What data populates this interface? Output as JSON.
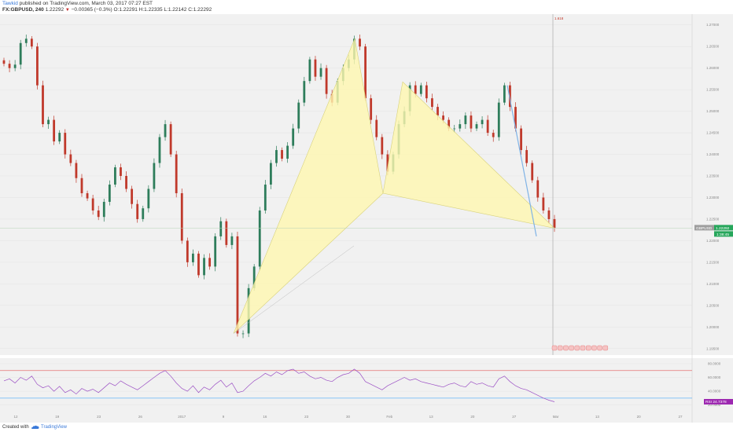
{
  "header": {
    "author": "Tawkid",
    "published_text": " published on TradingView.com, March 03, 2017 07:27 EST",
    "symbol": "FX:GBPUSD, 240",
    "last": "1.22292",
    "change_icon": "triangle-down-icon",
    "change": "−0.00365 (−0.3%)",
    "ohlc": "O:1.22291 H:1.22335 L:1.22142 C:1.22292"
  },
  "footer": {
    "created_with": "Created with",
    "logo_icon": "tradingview-cloud-icon",
    "brand": "TradingView"
  },
  "colors": {
    "up_candle": "#2e7d5b",
    "down_candle": "#c0392b",
    "pattern_fill": "#fff7b0",
    "pattern_edge": "#d8d27a",
    "rsi_line": "#9b4fc4",
    "rsi_upper": "#e57373",
    "rsi_lower": "#64b5f6",
    "price_tag": "#26a65b",
    "rsi_tag": "#9c27b0"
  },
  "chart_data": [
    {
      "type": "candlestick",
      "series_name": "GBPUSD",
      "yaxis_ticks": [
        "1.27000",
        "1.26500",
        "1.26000",
        "1.25500",
        "1.25000",
        "1.24500",
        "1.24000",
        "1.23500",
        "1.23000",
        "1.22500",
        "1.22000",
        "1.21500",
        "1.21000",
        "1.20500",
        "1.20000",
        "1.19500"
      ],
      "ylim": [
        1.1935,
        1.2725
      ],
      "last_price_label": "1.22292",
      "countdown_label": "1:38:45",
      "fib_label": "1.618",
      "close_path": [
        1.261,
        1.26,
        1.2608,
        1.2658,
        1.2668,
        1.265,
        1.256,
        1.247,
        1.248,
        1.243,
        1.245,
        1.24,
        1.238,
        1.2345,
        1.231,
        1.2298,
        1.227,
        1.2255,
        1.229,
        1.233,
        1.237,
        1.235,
        1.232,
        1.2285,
        1.225,
        1.2275,
        1.232,
        1.238,
        1.244,
        1.247,
        1.24,
        1.231,
        1.22,
        1.215,
        1.217,
        1.212,
        1.216,
        1.214,
        1.221,
        1.2245,
        1.219,
        1.221,
        1.1985,
        1.1985,
        1.209,
        1.214,
        1.227,
        1.233,
        1.238,
        1.241,
        1.239,
        1.242,
        1.246,
        1.252,
        1.257,
        1.262,
        1.258,
        1.26,
        1.254,
        1.252,
        1.257,
        1.26,
        1.262,
        1.2668,
        1.265,
        1.253,
        1.248,
        1.244,
        1.24,
        1.236,
        1.24,
        1.247,
        1.25,
        1.256,
        1.254,
        1.256,
        1.253,
        1.251,
        1.249,
        1.248,
        1.246,
        1.246,
        1.247,
        1.249,
        1.246,
        1.247,
        1.248,
        1.245,
        1.244,
        1.252,
        1.256,
        1.251,
        1.246,
        1.241,
        1.238,
        1.234,
        1.23,
        1.227,
        1.225,
        1.2229
      ]
    },
    {
      "type": "line",
      "series_name": "RSI",
      "rsi_ticks": [
        "80.0000",
        "60.0000",
        "40.0000",
        "20.0000"
      ],
      "ylim": [
        15,
        88
      ],
      "levels": [
        70,
        30
      ],
      "last_value_label": "24.7378",
      "values": [
        55,
        58,
        52,
        60,
        56,
        62,
        50,
        45,
        48,
        40,
        47,
        38,
        42,
        36,
        44,
        40,
        43,
        38,
        45,
        52,
        48,
        55,
        50,
        46,
        42,
        48,
        54,
        60,
        66,
        70,
        62,
        52,
        44,
        40,
        48,
        38,
        46,
        42,
        50,
        56,
        46,
        52,
        38,
        40,
        48,
        55,
        60,
        66,
        62,
        68,
        64,
        70,
        72,
        66,
        68,
        62,
        58,
        60,
        56,
        54,
        60,
        64,
        66,
        72,
        66,
        54,
        50,
        46,
        42,
        48,
        52,
        56,
        60,
        56,
        58,
        54,
        52,
        50,
        48,
        46,
        50,
        52,
        48,
        46,
        54,
        50,
        52,
        48,
        46,
        58,
        62,
        54,
        48,
        44,
        42,
        38,
        34,
        30,
        27,
        24.7
      ]
    }
  ],
  "time_axis": {
    "labels": [
      "12",
      "19",
      "23",
      "26",
      "2017",
      "9",
      "16",
      "23",
      "30",
      "Feb",
      "13",
      "20",
      "27",
      "Mar",
      "13",
      "20",
      "27"
    ]
  },
  "session_icons": [
    "event-flag-icon",
    "event-flag-icon",
    "event-flag-icon",
    "event-flag-icon",
    "event-flag-icon",
    "event-flag-icon",
    "event-flag-icon",
    "event-flag-icon",
    "event-flag-icon",
    "event-flag-icon"
  ]
}
